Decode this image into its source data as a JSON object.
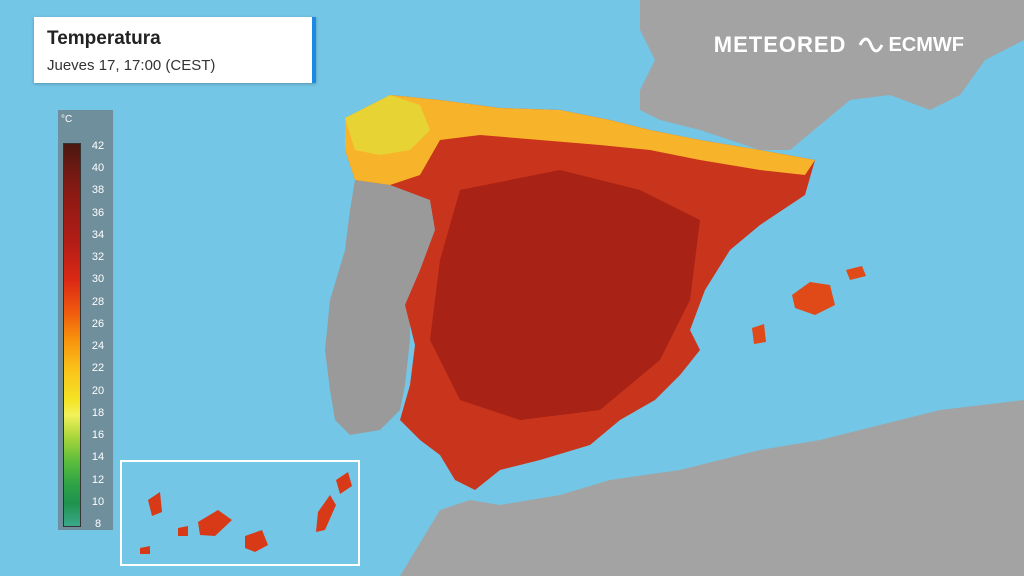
{
  "header": {
    "title": "Temperatura",
    "subtitle": "Jueves 17, 17:00 (CEST)"
  },
  "legend": {
    "unit": "°C",
    "ticks": [
      "42",
      "40",
      "38",
      "36",
      "34",
      "32",
      "30",
      "28",
      "26",
      "24",
      "22",
      "20",
      "18",
      "16",
      "14",
      "12",
      "10",
      "8"
    ],
    "colors": {
      "t42": "#4a1710",
      "t38": "#8e1a14",
      "t34": "#dc2a14",
      "t30": "#f05a0e",
      "t26": "#fbc21a",
      "t22": "#f2f25a",
      "t18": "#a6d43a",
      "t14": "#2fa346",
      "t8": "#3aa88a"
    }
  },
  "logos": {
    "meteored": "METEORED",
    "ecmwf": "ECMWF"
  },
  "colors": {
    "sea": "#74c6e6",
    "land": "#9a9a9a",
    "hot": "#c9341c"
  }
}
